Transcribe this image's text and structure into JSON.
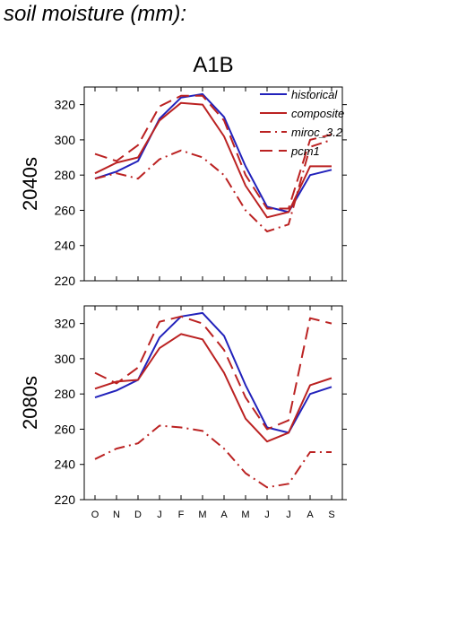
{
  "figure_title": "soil moisture (mm):",
  "chart_data": [
    {
      "type": "line",
      "title": "A1B",
      "row_label": "2040s",
      "categories": [
        "O",
        "N",
        "D",
        "J",
        "F",
        "M",
        "A",
        "M",
        "J",
        "J",
        "A",
        "S"
      ],
      "show_x_tick_labels": false,
      "ylim": [
        220,
        330
      ],
      "yticks": [
        220,
        240,
        260,
        280,
        300,
        320
      ],
      "grid": false,
      "legend": "top-right",
      "series": [
        {
          "name": "historical",
          "color": "#2222bb",
          "dash": "solid",
          "values": [
            278,
            282,
            288,
            312,
            324,
            326,
            313,
            285,
            262,
            259,
            280,
            283
          ]
        },
        {
          "name": "composite",
          "color": "#bb2222",
          "dash": "solid",
          "values": [
            281,
            287,
            290,
            311,
            321,
            320,
            302,
            274,
            256,
            259,
            285,
            285
          ]
        },
        {
          "name": "miroc_3.2",
          "color": "#bb2222",
          "dash": "dashdot",
          "values": [
            278,
            281,
            278,
            289,
            294,
            290,
            280,
            260,
            248,
            252,
            296,
            300
          ]
        },
        {
          "name": "pcm1",
          "color": "#bb2222",
          "dash": "dash",
          "values": [
            292,
            288,
            297,
            319,
            325,
            325,
            311,
            280,
            261,
            261,
            300,
            303
          ]
        }
      ]
    },
    {
      "type": "line",
      "title": "",
      "row_label": "2080s",
      "categories": [
        "O",
        "N",
        "D",
        "J",
        "F",
        "M",
        "A",
        "M",
        "J",
        "J",
        "A",
        "S"
      ],
      "show_x_tick_labels": true,
      "ylim": [
        220,
        330
      ],
      "yticks": [
        220,
        240,
        260,
        280,
        300,
        320
      ],
      "grid": false,
      "legend": "",
      "series": [
        {
          "name": "historical",
          "color": "#2222bb",
          "dash": "solid",
          "values": [
            278,
            282,
            288,
            312,
            324,
            326,
            313,
            285,
            261,
            258,
            280,
            284
          ]
        },
        {
          "name": "composite",
          "color": "#bb2222",
          "dash": "solid",
          "values": [
            283,
            287,
            288,
            306,
            314,
            311,
            292,
            266,
            253,
            258,
            285,
            289
          ]
        },
        {
          "name": "miroc_3.2",
          "color": "#bb2222",
          "dash": "dashdot",
          "values": [
            243,
            249,
            252,
            262,
            261,
            259,
            249,
            235,
            227,
            229,
            247,
            247
          ]
        },
        {
          "name": "pcm1",
          "color": "#bb2222",
          "dash": "dash",
          "values": [
            292,
            286,
            295,
            321,
            324,
            320,
            305,
            278,
            260,
            265,
            323,
            320
          ]
        }
      ]
    }
  ]
}
